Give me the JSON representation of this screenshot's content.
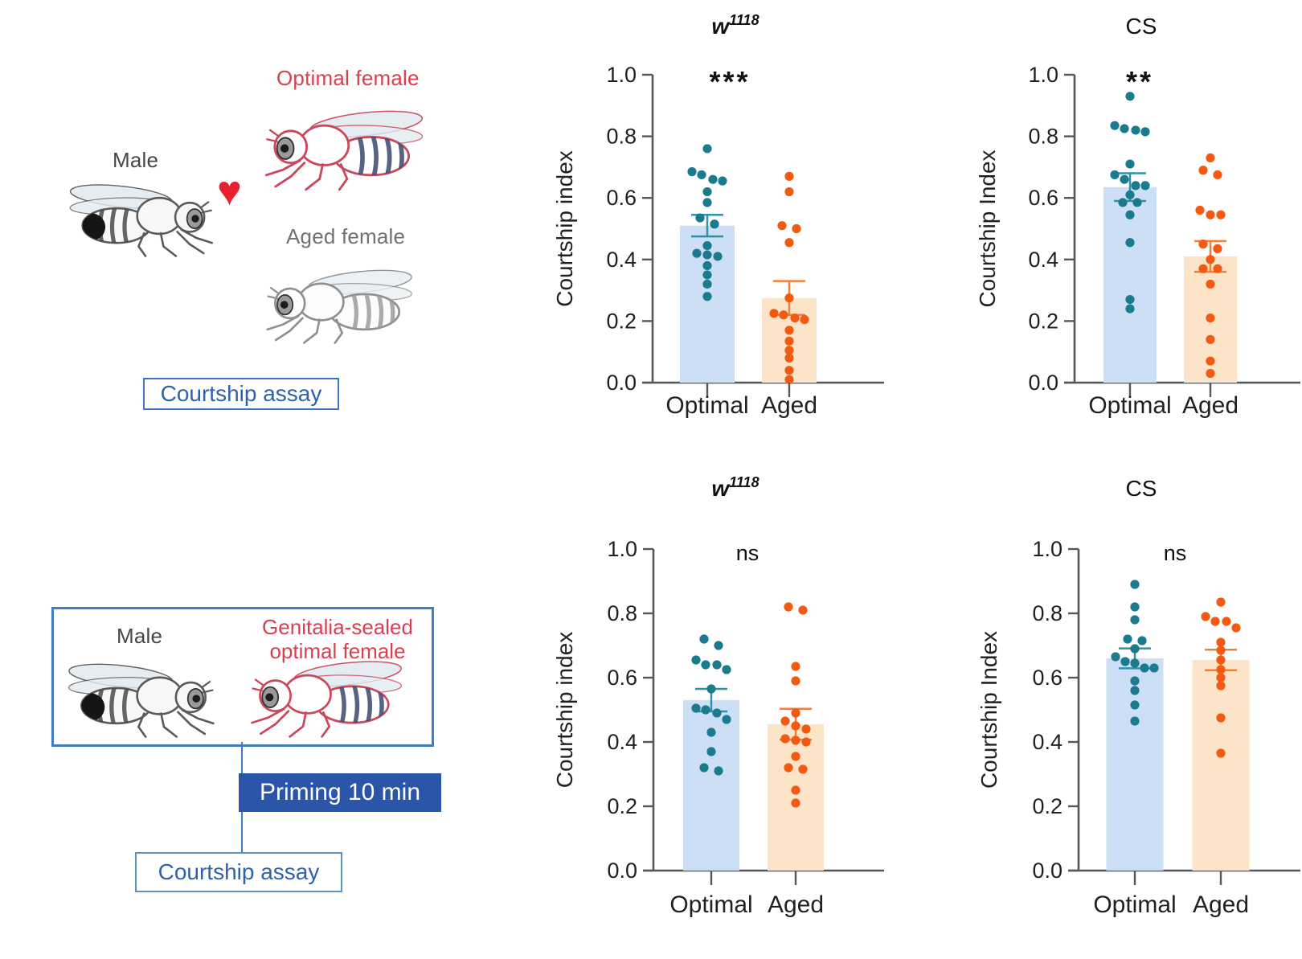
{
  "panels": {
    "assay1": {
      "male_label": "Male",
      "optimal_female_label": "Optimal female",
      "aged_female_label": "Aged female",
      "heart_glyph": "♥",
      "assay_box_label": "Courtship assay"
    },
    "assay2": {
      "male_label": "Male",
      "sealed_female_label_line1": "Genitalia-sealed",
      "sealed_female_label_line2": "optimal female",
      "priming_label": "Priming 10 min",
      "assay_box_label": "Courtship assay"
    }
  },
  "colors": {
    "teal_dot": "#1b7a8e",
    "teal_whisker": "#2e93a6",
    "blue_bar": "#cddff5",
    "orange_dot": "#f25a11",
    "orange_whisker": "#ef7f3c",
    "orange_bar": "#fbe4c8",
    "axis": "#56575a",
    "text": "#231f20",
    "red_label": "#d9404f",
    "heart_red": "#e8212e",
    "blue_text": "#2f62ae",
    "box_border_blue": "#3c74c0",
    "priming_bg": "#2b55a8"
  },
  "chart_data": [
    {
      "type": "bar",
      "title": {
        "base": "w",
        "sup": "1118"
      },
      "significance": "***",
      "ylabel": "Courtship index",
      "ylim": [
        0.0,
        1.0
      ],
      "yticks": [
        "0.0",
        "0.2",
        "0.4",
        "0.6",
        "0.8",
        "1.0"
      ],
      "categories": [
        "Optimal",
        "Aged"
      ],
      "series": [
        {
          "name": "Optimal",
          "mean": 0.51,
          "sem": 0.035,
          "points": [
            0.76,
            0.685,
            0.675,
            0.66,
            0.655,
            0.62,
            0.585,
            0.535,
            0.515,
            0.445,
            0.42,
            0.415,
            0.41,
            0.38,
            0.35,
            0.32,
            0.28
          ]
        },
        {
          "name": "Aged",
          "mean": 0.275,
          "sem": 0.055,
          "points": [
            0.67,
            0.62,
            0.51,
            0.5,
            0.455,
            0.275,
            0.225,
            0.22,
            0.21,
            0.205,
            0.17,
            0.135,
            0.105,
            0.08,
            0.04,
            0.01
          ]
        }
      ]
    },
    {
      "type": "bar",
      "title": {
        "base": "CS",
        "sup": ""
      },
      "significance": "**",
      "ylabel": "Courtship Index",
      "ylim": [
        0.0,
        1.0
      ],
      "yticks": [
        "0.0",
        "0.2",
        "0.4",
        "0.6",
        "0.8",
        "1.0"
      ],
      "categories": [
        "Optimal",
        "Aged"
      ],
      "series": [
        {
          "name": "Optimal",
          "mean": 0.635,
          "sem": 0.045,
          "points": [
            0.93,
            0.835,
            0.825,
            0.82,
            0.815,
            0.71,
            0.675,
            0.66,
            0.64,
            0.64,
            0.61,
            0.585,
            0.585,
            0.545,
            0.455,
            0.27,
            0.24
          ]
        },
        {
          "name": "Aged",
          "mean": 0.41,
          "sem": 0.05,
          "points": [
            0.73,
            0.69,
            0.675,
            0.56,
            0.545,
            0.545,
            0.45,
            0.435,
            0.4,
            0.37,
            0.37,
            0.32,
            0.21,
            0.14,
            0.07,
            0.03
          ]
        }
      ]
    },
    {
      "type": "bar",
      "title": {
        "base": "w",
        "sup": "1118"
      },
      "significance": "ns",
      "ylabel": "Courtship index",
      "ylim": [
        0.0,
        1.0
      ],
      "yticks": [
        "0.0",
        "0.2",
        "0.4",
        "0.6",
        "0.8",
        "1.0"
      ],
      "categories": [
        "Optimal",
        "Aged"
      ],
      "series": [
        {
          "name": "Optimal",
          "mean": 0.53,
          "sem": 0.035,
          "points": [
            0.72,
            0.7,
            0.655,
            0.64,
            0.64,
            0.625,
            0.565,
            0.505,
            0.5,
            0.49,
            0.47,
            0.43,
            0.37,
            0.32,
            0.31
          ]
        },
        {
          "name": "Aged",
          "mean": 0.455,
          "sem": 0.048,
          "points": [
            0.82,
            0.81,
            0.635,
            0.59,
            0.49,
            0.465,
            0.45,
            0.44,
            0.41,
            0.405,
            0.4,
            0.355,
            0.32,
            0.315,
            0.25,
            0.21
          ]
        }
      ]
    },
    {
      "type": "bar",
      "title": {
        "base": "CS",
        "sup": ""
      },
      "significance": "ns",
      "ylabel": "Courtship Index",
      "ylim": [
        0.0,
        1.0
      ],
      "yticks": [
        "0.0",
        "0.2",
        "0.4",
        "0.6",
        "0.8",
        "1.0"
      ],
      "categories": [
        "Optimal",
        "Aged"
      ],
      "series": [
        {
          "name": "Optimal",
          "mean": 0.66,
          "sem": 0.031,
          "points": [
            0.89,
            0.82,
            0.78,
            0.72,
            0.715,
            0.69,
            0.665,
            0.65,
            0.645,
            0.63,
            0.63,
            0.59,
            0.56,
            0.515,
            0.465
          ]
        },
        {
          "name": "Aged",
          "mean": 0.655,
          "sem": 0.032,
          "points": [
            0.835,
            0.79,
            0.775,
            0.775,
            0.755,
            0.71,
            0.685,
            0.655,
            0.625,
            0.6,
            0.575,
            0.475,
            0.365
          ]
        }
      ]
    }
  ]
}
